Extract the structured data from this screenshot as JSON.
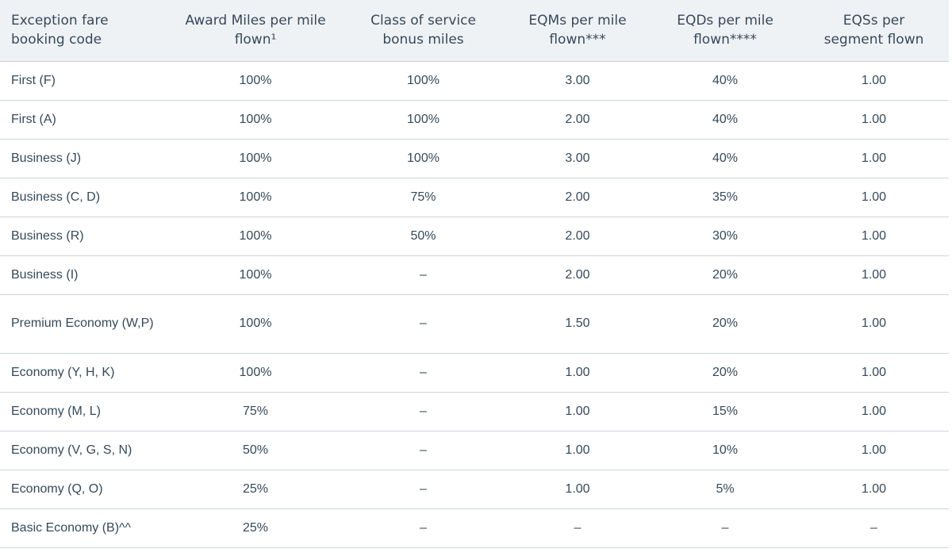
{
  "table": {
    "headers": [
      "Exception fare booking code",
      "Award Miles per mile flown¹",
      "Class of service bonus miles",
      "EQMs per mile flown***",
      "EQDs per mile flown****",
      "EQSs per segment flown"
    ],
    "rows": [
      [
        "First (F)",
        "100%",
        "100%",
        "3.00",
        "40%",
        "1.00"
      ],
      [
        "First (A)",
        "100%",
        "100%",
        "2.00",
        "40%",
        "1.00"
      ],
      [
        "Business (J)",
        "100%",
        "100%",
        "3.00",
        "40%",
        "1.00"
      ],
      [
        "Business (C, D)",
        "100%",
        "75%",
        "2.00",
        "35%",
        "1.00"
      ],
      [
        "Business (R)",
        "100%",
        "50%",
        "2.00",
        "30%",
        "1.00"
      ],
      [
        "Business (I)",
        "100%",
        "–",
        "2.00",
        "20%",
        "1.00"
      ],
      [
        "Premium Economy (W,P)",
        "100%",
        "–",
        "1.50",
        "20%",
        "1.00"
      ],
      [
        "Economy (Y, H, K)",
        "100%",
        "–",
        "1.00",
        "20%",
        "1.00"
      ],
      [
        "Economy (M, L)",
        "75%",
        "–",
        "1.00",
        "15%",
        "1.00"
      ],
      [
        "Economy (V, G, S, N)",
        "50%",
        "–",
        "1.00",
        "10%",
        "1.00"
      ],
      [
        "Economy (Q, O)",
        "25%",
        "–",
        "1.00",
        "5%",
        "1.00"
      ],
      [
        "Basic Economy (B)^^",
        "25%",
        "–",
        "–",
        "–",
        "–"
      ]
    ]
  }
}
